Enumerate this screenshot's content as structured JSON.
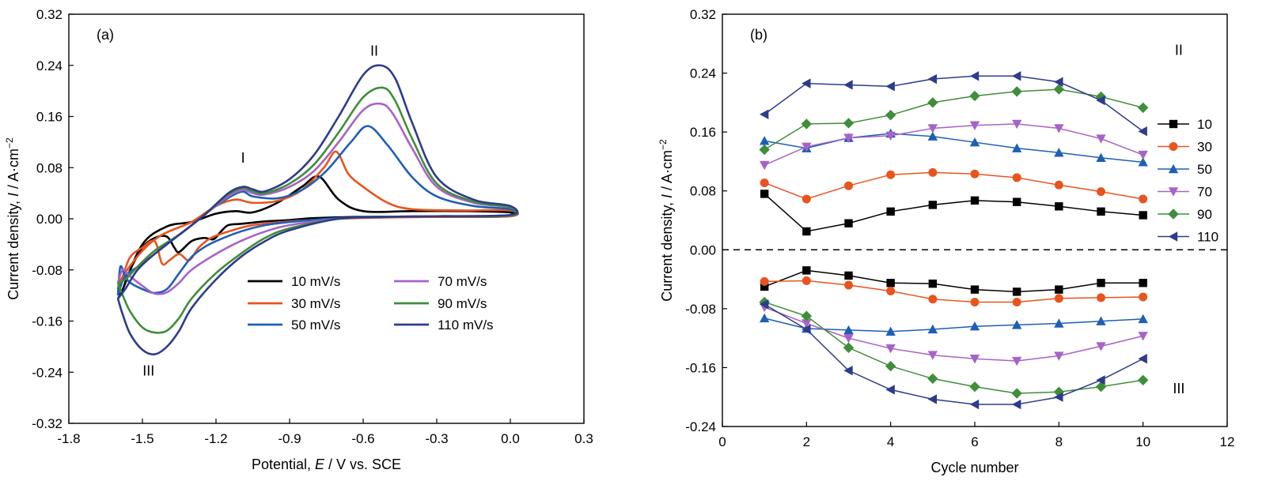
{
  "chart_data": [
    {
      "panel_label": "(a)",
      "type": "line",
      "xlabel": {
        "prefix": "Potential, ",
        "symbol": "E",
        "suffix": " / V vs. SCE"
      },
      "ylabel": {
        "prefix": "Current density, ",
        "symbol": "I",
        "mid": " / A·cm",
        "sup": "−2"
      },
      "xlim": [
        -1.8,
        0.3
      ],
      "ylim": [
        -0.32,
        0.32
      ],
      "xticks": [
        -1.8,
        -1.5,
        -1.2,
        -0.9,
        -0.6,
        -0.3,
        0.0,
        0.3
      ],
      "xtick_labels": [
        "-1.8",
        "-1.5",
        "-1.2",
        "-0.9",
        "-0.6",
        "-0.3",
        "0.0",
        "0.3"
      ],
      "yticks": [
        -0.32,
        -0.24,
        -0.16,
        -0.08,
        0.0,
        0.08,
        0.16,
        0.24,
        0.32
      ],
      "ytick_labels": [
        "-0.32",
        "-0.24",
        "-0.16",
        "-0.08",
        "0.00",
        "0.08",
        "0.16",
        "0.24",
        "0.32"
      ],
      "annotations": [
        {
          "text": "I",
          "x": -1.09,
          "y": 0.088
        },
        {
          "text": "II",
          "x": -0.555,
          "y": 0.255
        },
        {
          "text": "III",
          "x": -1.475,
          "y": -0.245
        }
      ],
      "legend_position": "bottom-center",
      "series": [
        {
          "name": "10 mV/s",
          "color": "#000000",
          "x": [
            -1.6,
            -1.58,
            -1.55,
            -1.5,
            -1.45,
            -1.4,
            -1.37,
            -1.35,
            -1.3,
            -1.25,
            -1.21,
            -1.18,
            -1.15,
            -1.1,
            -1.05,
            -1.0,
            -0.9,
            -0.8,
            -0.6,
            -0.4,
            -0.2,
            0.0,
            0.0,
            -0.2,
            -0.4,
            -0.6,
            -0.7,
            -0.78,
            -0.85,
            -0.95,
            -1.05,
            -1.12,
            -1.2,
            -1.3,
            -1.4,
            -1.5,
            -1.58,
            -1.6
          ],
          "y": [
            -0.125,
            -0.11,
            -0.08,
            -0.045,
            -0.03,
            -0.028,
            -0.045,
            -0.052,
            -0.035,
            -0.03,
            -0.032,
            -0.02,
            -0.01,
            -0.008,
            -0.006,
            -0.004,
            -0.002,
            0.001,
            0.003,
            0.003,
            0.003,
            0.004,
            0.01,
            0.012,
            0.012,
            0.012,
            0.03,
            0.066,
            0.05,
            0.025,
            0.01,
            0.012,
            0.008,
            -0.005,
            -0.012,
            -0.04,
            -0.11,
            -0.125
          ]
        },
        {
          "name": "30 mV/s",
          "color": "#e8541e",
          "x": [
            -1.6,
            -1.58,
            -1.55,
            -1.5,
            -1.45,
            -1.42,
            -1.39,
            -1.35,
            -1.31,
            -1.27,
            -1.22,
            -1.15,
            -1.05,
            -0.9,
            -0.7,
            -0.5,
            -0.3,
            0.0,
            0.0,
            -0.2,
            -0.4,
            -0.5,
            -0.6,
            -0.66,
            -0.71,
            -0.76,
            -0.85,
            -0.95,
            -1.05,
            -1.12,
            -1.2,
            -1.3,
            -1.42,
            -1.5,
            -1.58,
            -1.6
          ],
          "y": [
            -0.11,
            -0.09,
            -0.06,
            -0.045,
            -0.035,
            -0.07,
            -0.065,
            -0.055,
            -0.065,
            -0.045,
            -0.03,
            -0.02,
            -0.01,
            -0.004,
            0.0,
            0.002,
            0.003,
            0.004,
            0.013,
            0.013,
            0.015,
            0.025,
            0.05,
            0.07,
            0.105,
            0.08,
            0.045,
            0.028,
            0.025,
            0.03,
            0.02,
            -0.005,
            -0.025,
            -0.05,
            -0.09,
            -0.11
          ]
        },
        {
          "name": "50 mV/s",
          "color": "#1e5fb4",
          "x": [
            -1.6,
            -1.59,
            -1.57,
            -1.55,
            -1.5,
            -1.45,
            -1.4,
            -1.35,
            -1.3,
            -1.25,
            -1.2,
            -1.1,
            -1.0,
            -0.9,
            -0.7,
            -0.5,
            -0.3,
            0.0,
            0.0,
            -0.15,
            -0.3,
            -0.4,
            -0.5,
            -0.58,
            -0.65,
            -0.75,
            -0.85,
            -0.95,
            -1.05,
            -1.1,
            -1.2,
            -1.3,
            -1.4,
            -1.5,
            -1.57,
            -1.6
          ],
          "y": [
            -0.12,
            -0.075,
            -0.09,
            -0.1,
            -0.11,
            -0.116,
            -0.11,
            -0.085,
            -0.06,
            -0.045,
            -0.035,
            -0.02,
            -0.01,
            -0.005,
            0.001,
            0.003,
            0.004,
            0.005,
            0.015,
            0.02,
            0.035,
            0.065,
            0.115,
            0.145,
            0.12,
            0.075,
            0.045,
            0.032,
            0.035,
            0.042,
            0.02,
            -0.01,
            -0.04,
            -0.07,
            -0.09,
            -0.12
          ]
        },
        {
          "name": "70 mV/s",
          "color": "#a862c7",
          "x": [
            -1.6,
            -1.58,
            -1.55,
            -1.5,
            -1.45,
            -1.4,
            -1.35,
            -1.3,
            -1.2,
            -1.1,
            -1.0,
            -0.9,
            -0.7,
            -0.5,
            -0.3,
            0.0,
            0.0,
            -0.15,
            -0.3,
            -0.4,
            -0.48,
            -0.53,
            -0.6,
            -0.7,
            -0.8,
            -0.9,
            -1.0,
            -1.05,
            -1.09,
            -1.15,
            -1.25,
            -1.35,
            -1.45,
            -1.52,
            -1.57,
            -1.6
          ],
          "y": [
            -0.1,
            -0.08,
            -0.09,
            -0.105,
            -0.117,
            -0.115,
            -0.1,
            -0.08,
            -0.055,
            -0.035,
            -0.02,
            -0.01,
            0.0,
            0.003,
            0.004,
            0.005,
            0.018,
            0.025,
            0.05,
            0.11,
            0.165,
            0.18,
            0.17,
            0.12,
            0.075,
            0.05,
            0.038,
            0.04,
            0.045,
            0.035,
            0.005,
            -0.025,
            -0.05,
            -0.075,
            -0.095,
            -0.1
          ]
        },
        {
          "name": "90 mV/s",
          "color": "#3f8e3a",
          "x": [
            -1.6,
            -1.58,
            -1.55,
            -1.5,
            -1.45,
            -1.4,
            -1.35,
            -1.3,
            -1.2,
            -1.1,
            -1.0,
            -0.9,
            -0.7,
            -0.5,
            -0.3,
            0.0,
            0.0,
            -0.15,
            -0.3,
            -0.4,
            -0.47,
            -0.52,
            -0.6,
            -0.7,
            -0.8,
            -0.9,
            -1.0,
            -1.05,
            -1.09,
            -1.15,
            -1.25,
            -1.35,
            -1.45,
            -1.52,
            -1.57,
            -1.6
          ],
          "y": [
            -0.1,
            -0.12,
            -0.145,
            -0.17,
            -0.178,
            -0.175,
            -0.155,
            -0.125,
            -0.085,
            -0.055,
            -0.03,
            -0.015,
            0.0,
            0.003,
            0.004,
            0.005,
            0.018,
            0.027,
            0.055,
            0.125,
            0.185,
            0.205,
            0.19,
            0.135,
            0.085,
            0.055,
            0.04,
            0.043,
            0.048,
            0.038,
            0.005,
            -0.025,
            -0.05,
            -0.075,
            -0.095,
            -0.1
          ]
        },
        {
          "name": "110 mV/s",
          "color": "#2e3c8c",
          "x": [
            -1.6,
            -1.58,
            -1.55,
            -1.5,
            -1.45,
            -1.4,
            -1.35,
            -1.3,
            -1.2,
            -1.1,
            -1.0,
            -0.9,
            -0.7,
            -0.5,
            -0.3,
            0.0,
            0.0,
            -0.15,
            -0.3,
            -0.4,
            -0.47,
            -0.53,
            -0.6,
            -0.7,
            -0.8,
            -0.9,
            -1.0,
            -1.05,
            -1.09,
            -1.15,
            -1.25,
            -1.35,
            -1.45,
            -1.52,
            -1.57,
            -1.6
          ],
          "y": [
            -0.125,
            -0.15,
            -0.18,
            -0.205,
            -0.212,
            -0.2,
            -0.175,
            -0.14,
            -0.095,
            -0.06,
            -0.035,
            -0.018,
            0.0,
            0.003,
            0.004,
            0.006,
            0.02,
            0.03,
            0.065,
            0.15,
            0.22,
            0.24,
            0.225,
            0.16,
            0.1,
            0.062,
            0.043,
            0.046,
            0.05,
            0.04,
            0.005,
            -0.025,
            -0.055,
            -0.08,
            -0.11,
            -0.125
          ]
        }
      ]
    },
    {
      "panel_label": "(b)",
      "type": "line",
      "xlabel": {
        "prefix": "Cycle number",
        "symbol": "",
        "suffix": ""
      },
      "ylabel": {
        "prefix": "Current density, ",
        "symbol": "I",
        "mid": " / A·cm",
        "sup": "−2"
      },
      "xlim": [
        0,
        12
      ],
      "ylim": [
        -0.24,
        0.32
      ],
      "xticks": [
        0,
        2,
        4,
        6,
        8,
        10,
        12
      ],
      "xtick_labels": [
        "0",
        "2",
        "4",
        "6",
        "8",
        "10",
        "12"
      ],
      "yticks": [
        -0.24,
        -0.16,
        -0.08,
        0.0,
        0.08,
        0.16,
        0.24,
        0.32
      ],
      "ytick_labels": [
        "-0.24",
        "-0.16",
        "-0.08",
        "0.00",
        "0.08",
        "0.16",
        "0.24",
        "0.32"
      ],
      "zero_line": true,
      "annotations": [
        {
          "text": "II",
          "x": 10.85,
          "y": 0.265
        },
        {
          "text": "III",
          "x": 10.85,
          "y": -0.195
        }
      ],
      "legend_position": "right",
      "x": [
        1,
        2,
        3,
        4,
        5,
        6,
        7,
        8,
        9,
        10
      ],
      "series": [
        {
          "name": "10",
          "color": "#000000",
          "marker": "square",
          "upper": [
            0.076,
            0.025,
            0.036,
            0.052,
            0.061,
            0.067,
            0.065,
            0.059,
            0.052,
            0.047
          ],
          "lower": [
            -0.05,
            -0.028,
            -0.035,
            -0.045,
            -0.046,
            -0.054,
            -0.057,
            -0.054,
            -0.045,
            -0.045
          ]
        },
        {
          "name": "30",
          "color": "#e8541e",
          "marker": "circle",
          "upper": [
            0.091,
            0.069,
            0.087,
            0.102,
            0.105,
            0.103,
            0.098,
            0.088,
            0.079,
            0.069
          ],
          "lower": [
            -0.043,
            -0.042,
            -0.048,
            -0.056,
            -0.067,
            -0.071,
            -0.071,
            -0.066,
            -0.065,
            -0.064
          ]
        },
        {
          "name": "50",
          "color": "#1e5fb4",
          "marker": "triangle-up",
          "upper": [
            0.148,
            0.138,
            0.152,
            0.158,
            0.154,
            0.146,
            0.138,
            0.132,
            0.125,
            0.119
          ],
          "lower": [
            -0.093,
            -0.107,
            -0.109,
            -0.111,
            -0.108,
            -0.104,
            -0.102,
            -0.1,
            -0.097,
            -0.094
          ]
        },
        {
          "name": "70",
          "color": "#a862c7",
          "marker": "triangle-down",
          "upper": [
            0.115,
            0.14,
            0.152,
            0.155,
            0.165,
            0.169,
            0.171,
            0.165,
            0.151,
            0.129
          ],
          "lower": [
            -0.078,
            -0.1,
            -0.12,
            -0.134,
            -0.143,
            -0.148,
            -0.151,
            -0.144,
            -0.131,
            -0.117
          ]
        },
        {
          "name": "90",
          "color": "#3f8e3a",
          "marker": "diamond",
          "upper": [
            0.136,
            0.171,
            0.172,
            0.183,
            0.2,
            0.209,
            0.215,
            0.218,
            0.208,
            0.193
          ],
          "lower": [
            -0.071,
            -0.09,
            -0.133,
            -0.158,
            -0.175,
            -0.186,
            -0.195,
            -0.193,
            -0.186,
            -0.177
          ]
        },
        {
          "name": "110",
          "color": "#2e3c8c",
          "marker": "triangle-left",
          "upper": [
            0.184,
            0.226,
            0.224,
            0.222,
            0.232,
            0.236,
            0.236,
            0.228,
            0.203,
            0.161
          ],
          "lower": [
            -0.074,
            -0.108,
            -0.164,
            -0.19,
            -0.203,
            -0.21,
            -0.21,
            -0.2,
            -0.177,
            -0.148
          ]
        }
      ]
    }
  ]
}
